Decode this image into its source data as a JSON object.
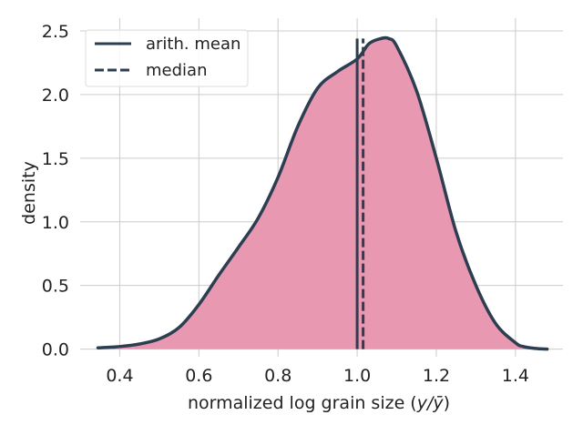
{
  "chart_data": {
    "type": "area",
    "title": "",
    "xlabel_prefix": "normalized log grain size (",
    "xlabel_var": "y/ȳ",
    "xlabel_suffix": ")",
    "ylabel": "density",
    "xlim": [
      0.3,
      1.52
    ],
    "ylim": [
      -0.06,
      2.6
    ],
    "xticks": [
      0.4,
      0.6,
      0.8,
      1.0,
      1.2,
      1.4
    ],
    "xtick_labels": [
      "0.4",
      "0.6",
      "0.8",
      "1.0",
      "1.2",
      "1.4"
    ],
    "yticks": [
      0.0,
      0.5,
      1.0,
      1.5,
      2.0,
      2.5
    ],
    "ytick_labels": [
      "0.0",
      "0.5",
      "1.0",
      "1.5",
      "2.0",
      "2.5"
    ],
    "grid": true,
    "legend_position": "top-left",
    "colors": {
      "fill": "#e899b1",
      "line": "#2c3e50",
      "grid": "#cccccc"
    },
    "series": [
      {
        "kind": "density",
        "x": [
          0.345,
          0.4,
          0.45,
          0.5,
          0.55,
          0.6,
          0.65,
          0.7,
          0.75,
          0.8,
          0.85,
          0.9,
          0.95,
          1.0,
          1.03,
          1.06,
          1.08,
          1.1,
          1.15,
          1.2,
          1.25,
          1.3,
          1.35,
          1.4,
          1.42,
          1.45,
          1.48
        ],
        "y": [
          0.01,
          0.02,
          0.04,
          0.08,
          0.17,
          0.35,
          0.58,
          0.8,
          1.03,
          1.35,
          1.75,
          2.05,
          2.18,
          2.28,
          2.4,
          2.44,
          2.44,
          2.38,
          2.03,
          1.5,
          0.92,
          0.5,
          0.2,
          0.05,
          0.02,
          0.005,
          0.0
        ]
      }
    ],
    "vlines": [
      {
        "name": "arith. mean",
        "x": 1.0,
        "style": "solid"
      },
      {
        "name": "median",
        "x": 1.015,
        "style": "dashed"
      }
    ],
    "vline_top": 2.44,
    "legend": [
      {
        "label": "arith. mean",
        "style": "solid"
      },
      {
        "label": "median",
        "style": "dashed"
      }
    ]
  }
}
